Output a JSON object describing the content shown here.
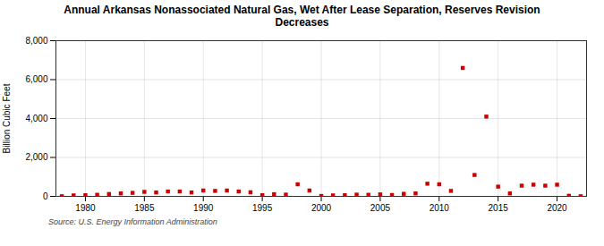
{
  "chart_data": {
    "type": "scatter",
    "title": "Annual Arkansas Nonassociated Natural Gas, Wet After Lease Separation, Reserves Revision\nDecreases",
    "ylabel": "Billion Cubic Feet",
    "source": "Source: U.S. Energy Information Administration",
    "color": "#cc0000",
    "marker": "square",
    "grid": true,
    "xlim": [
      1977.5,
      2022.5
    ],
    "ylim": [
      0,
      8000
    ],
    "xticks": [
      1980,
      1985,
      1990,
      1995,
      2000,
      2005,
      2010,
      2015,
      2020
    ],
    "yticks": [
      0,
      {
        "value": 2000,
        "label": "2,000"
      },
      {
        "value": 4000,
        "label": "4,000"
      },
      {
        "value": 6000,
        "label": "6,000"
      },
      {
        "value": 8000,
        "label": "8,000"
      }
    ],
    "x": [
      1978,
      1979,
      1980,
      1981,
      1982,
      1983,
      1984,
      1985,
      1986,
      1987,
      1988,
      1989,
      1990,
      1991,
      1992,
      1993,
      1994,
      1995,
      1996,
      1997,
      1998,
      1999,
      2000,
      2001,
      2002,
      2003,
      2004,
      2005,
      2006,
      2007,
      2008,
      2009,
      2010,
      2011,
      2012,
      2013,
      2014,
      2015,
      2016,
      2017,
      2018,
      2019,
      2020,
      2021,
      2022
    ],
    "values": [
      5,
      50,
      60,
      80,
      120,
      150,
      180,
      230,
      200,
      250,
      250,
      200,
      300,
      280,
      300,
      250,
      210,
      60,
      110,
      90,
      620,
      300,
      20,
      50,
      60,
      90,
      80,
      100,
      70,
      130,
      150,
      650,
      620,
      280,
      6600,
      1100,
      4100,
      500,
      150,
      550,
      600,
      550,
      600,
      30,
      5
    ]
  }
}
